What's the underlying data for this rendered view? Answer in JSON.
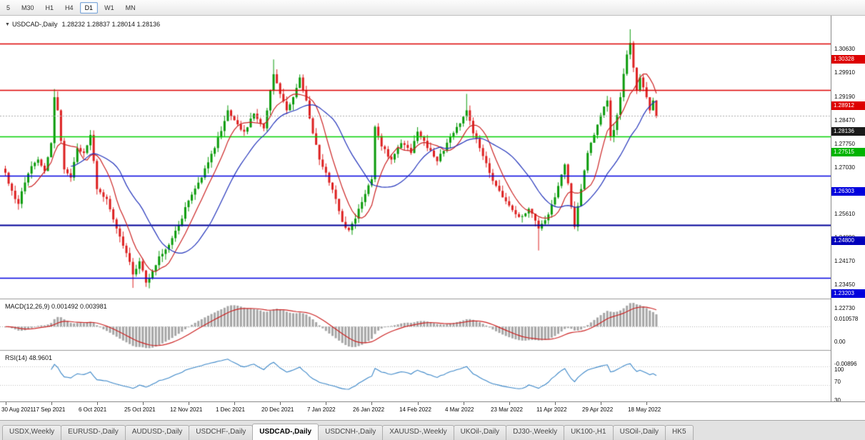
{
  "toolbar": {
    "periods": [
      {
        "label": "5",
        "active": false
      },
      {
        "label": "M30",
        "active": false
      },
      {
        "label": "H1",
        "active": false
      },
      {
        "label": "H4",
        "active": false
      },
      {
        "label": "D1",
        "active": true
      },
      {
        "label": "W1",
        "active": false
      },
      {
        "label": "MN",
        "active": false
      }
    ]
  },
  "chart": {
    "marker": "▼",
    "title": "USDCAD-,Daily",
    "ohlc": "1.28232 1.28837 1.28014 1.28136"
  },
  "chart_data": {
    "type": "candlestick",
    "symbol": "USDCAD",
    "timeframe": "Daily",
    "open": 1.28232,
    "high": 1.28837,
    "low": 1.28014,
    "close": 1.28136,
    "ylim": [
      1.22608,
      1.31052
    ],
    "y_ticks": [
      "1.30630",
      "1.29910",
      "1.29190",
      "1.28470",
      "1.27750",
      "1.27030",
      "1.26310",
      "1.25610",
      "1.24890",
      "1.24170",
      "1.23450",
      "1.22730"
    ],
    "x_tick_dates": [
      "30 Aug 2021",
      "17 Sep 2021",
      "6 Oct 2021",
      "25 Oct 2021",
      "12 Nov 2021",
      "1 Dec 2021",
      "20 Dec 2021",
      "7 Jan 2022",
      "26 Jan 2022",
      "14 Feb 2022",
      "4 Mar 2022",
      "23 Mar 2022",
      "11 Apr 2022",
      "29 Apr 2022",
      "18 May 2022"
    ],
    "x_tick_indices": [
      0,
      14,
      28,
      42,
      56,
      70,
      84,
      98,
      112,
      126,
      140,
      154,
      168,
      182,
      196
    ],
    "num_candles": 200,
    "up_color": "#0b9b0b",
    "down_color": "#dd2020",
    "close_anchors": [
      [
        0,
        1.264
      ],
      [
        2,
        1.2585
      ],
      [
        4,
        1.2545
      ],
      [
        6,
        1.261
      ],
      [
        8,
        1.266
      ],
      [
        10,
        1.268
      ],
      [
        12,
        1.2645
      ],
      [
        14,
        1.273
      ],
      [
        15,
        1.287
      ],
      [
        16,
        1.283
      ],
      [
        18,
        1.265
      ],
      [
        20,
        1.2625
      ],
      [
        22,
        1.2715
      ],
      [
        24,
        1.27
      ],
      [
        26,
        1.2755
      ],
      [
        28,
        1.259
      ],
      [
        31,
        1.256
      ],
      [
        34,
        1.247
      ],
      [
        37,
        1.2395
      ],
      [
        39,
        1.233
      ],
      [
        41,
        1.237
      ],
      [
        43,
        1.2305
      ],
      [
        45,
        1.234
      ],
      [
        47,
        1.2385
      ],
      [
        50,
        1.242
      ],
      [
        53,
        1.248
      ],
      [
        56,
        1.2555
      ],
      [
        60,
        1.2625
      ],
      [
        64,
        1.2715
      ],
      [
        68,
        1.283
      ],
      [
        70,
        1.28
      ],
      [
        73,
        1.2765
      ],
      [
        76,
        1.282
      ],
      [
        79,
        1.2775
      ],
      [
        82,
        1.294
      ],
      [
        84,
        1.288
      ],
      [
        86,
        1.283
      ],
      [
        88,
        1.287
      ],
      [
        90,
        1.293
      ],
      [
        92,
        1.286
      ],
      [
        94,
        1.276
      ],
      [
        96,
        1.268
      ],
      [
        98,
        1.264
      ],
      [
        101,
        1.256
      ],
      [
        103,
        1.249
      ],
      [
        105,
        1.2465
      ],
      [
        107,
        1.25
      ],
      [
        110,
        1.2575
      ],
      [
        112,
        1.262
      ],
      [
        113,
        1.278
      ],
      [
        115,
        1.272
      ],
      [
        118,
        1.268
      ],
      [
        121,
        1.273
      ],
      [
        124,
        1.27
      ],
      [
        126,
        1.2765
      ],
      [
        129,
        1.2715
      ],
      [
        132,
        1.2675
      ],
      [
        136,
        1.275
      ],
      [
        139,
        1.279
      ],
      [
        141,
        1.283
      ],
      [
        143,
        1.276
      ],
      [
        145,
        1.2715
      ],
      [
        149,
        1.2615
      ],
      [
        152,
        1.2565
      ],
      [
        154,
        1.254
      ],
      [
        157,
        1.2505
      ],
      [
        160,
        1.253
      ],
      [
        163,
        1.247
      ],
      [
        165,
        1.2495
      ],
      [
        168,
        1.2565
      ],
      [
        171,
        1.2665
      ],
      [
        174,
        1.2475
      ],
      [
        176,
        1.259
      ],
      [
        178,
        1.27
      ],
      [
        180,
        1.2755
      ],
      [
        182,
        1.2815
      ],
      [
        184,
        1.286
      ],
      [
        185,
        1.275
      ],
      [
        186,
        1.277
      ],
      [
        188,
        1.287
      ],
      [
        190,
        1.3
      ],
      [
        191,
        1.3035
      ],
      [
        192,
        1.296
      ],
      [
        193,
        1.289
      ],
      [
        194,
        1.293
      ],
      [
        195,
        1.29
      ],
      [
        196,
        1.287
      ],
      [
        197,
        1.283
      ],
      [
        198,
        1.286
      ],
      [
        199,
        1.28136
      ]
    ],
    "noise": {
      "seed": 7,
      "close_amp": 0.0006,
      "wick_amp": 0.0018
    },
    "wick_overrides": {
      "15": {
        "high": 1.2895
      },
      "39": {
        "low": 1.2289
      },
      "43": {
        "low": 1.2292
      },
      "82": {
        "high": 1.2985
      },
      "141": {
        "high": 1.288
      },
      "163": {
        "low": 1.2403
      },
      "174": {
        "low": 1.2468
      },
      "191": {
        "high": 1.3077
      }
    },
    "moving_averages": [
      {
        "period": 8,
        "color": "#cc2222"
      },
      {
        "period": 21,
        "color": "#2233bb"
      }
    ],
    "hlines": [
      {
        "price": 1.30328,
        "label": "1.30328",
        "line_color": "#dd0000",
        "label_bg": "#dd0000",
        "width": 1.4
      },
      {
        "price": 1.28912,
        "label": "1.28912",
        "line_color": "#dd0000",
        "label_bg": "#dd0000",
        "width": 1.4
      },
      {
        "price": 1.28136,
        "label": "1.28136",
        "line_color": "#aaaaaa",
        "label_bg": "#1a1a1a",
        "width": 1,
        "dash": [
          2,
          2
        ]
      },
      {
        "price": 1.27515,
        "label": "1.27515",
        "line_color": "#00d000",
        "label_bg": "#00b400",
        "width": 1.6
      },
      {
        "price": 1.26303,
        "label": "1.26303",
        "line_color": "#0000e0",
        "label_bg": "#0000dd",
        "width": 1.4
      },
      {
        "price": 1.248,
        "label": "1.24800",
        "line_color": "#000099",
        "label_bg": "#0000bb",
        "width": 2
      },
      {
        "price": 1.23203,
        "label": "1.23203",
        "line_color": "#0000e0",
        "label_bg": "#0000dd",
        "width": 1.4
      }
    ],
    "indicators": [
      {
        "name": "MACD",
        "params": "12,26,9",
        "label": "MACD(12,26,9) 0.001492 0.003981",
        "values": [
          0.001492,
          0.003981
        ],
        "range": [
          -0.00896,
          0.010578
        ],
        "axis": [
          "0.010578",
          "0.00",
          "-0.00896"
        ],
        "hist_color": "#a6a6a6",
        "signal_color": "#cc2222"
      },
      {
        "name": "RSI",
        "params": "14",
        "label": "RSI(14) 48.9601",
        "value": 48.9601,
        "range": [
          0,
          100
        ],
        "levels": [
          70,
          30
        ],
        "axis": [
          "100",
          "70",
          "30",
          "0"
        ],
        "line_color": "#3a86c8"
      }
    ]
  },
  "tabs": [
    {
      "label": "USDX,Weekly",
      "active": false
    },
    {
      "label": "EURUSD-,Daily",
      "active": false
    },
    {
      "label": "AUDUSD-,Daily",
      "active": false
    },
    {
      "label": "USDCHF-,Daily",
      "active": false
    },
    {
      "label": "USDCAD-,Daily",
      "active": true
    },
    {
      "label": "USDCNH-,Daily",
      "active": false
    },
    {
      "label": "XAUUSD-,Weekly",
      "active": false
    },
    {
      "label": "UKOil-,Daily",
      "active": false
    },
    {
      "label": "DJ30-,Weekly",
      "active": false
    },
    {
      "label": "UK100-,H1",
      "active": false
    },
    {
      "label": "USOil-,Daily",
      "active": false
    },
    {
      "label": "HK5",
      "active": false
    }
  ]
}
